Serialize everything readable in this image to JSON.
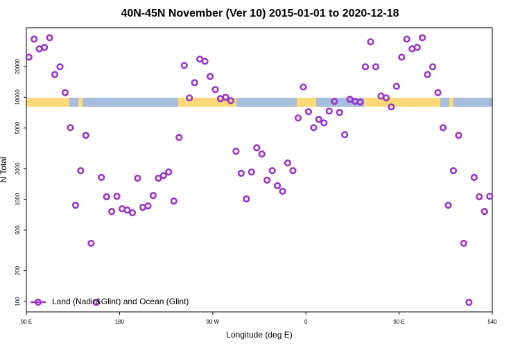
{
  "chart_data": {
    "type": "scatter",
    "title": "40N-45N November (Ver 10)   2015-01-01 to 2020-12-18",
    "xlabel": "Longitude (deg E)",
    "ylabel": "N Total",
    "xlim": [
      90,
      540
    ],
    "ylim": [
      79,
      48000
    ],
    "log_y": true,
    "legend": "bottom-left",
    "xticks": [
      {
        "value": 90,
        "label": "90 E"
      },
      180,
      {
        "value": 270,
        "label": "90 W"
      },
      {
        "value": 360,
        "label": "0"
      },
      {
        "value": 450,
        "label": "90 E"
      },
      540
    ],
    "yticks": [
      100,
      200,
      500,
      1000,
      2000,
      5000,
      10000,
      20000
    ],
    "x": [
      92.5,
      97.5,
      102.5,
      107.5,
      112.5,
      117.5,
      122.5,
      127.5,
      132.5,
      137.5,
      142.5,
      147.5,
      152.5,
      157.5,
      162.5,
      167.5,
      172.5,
      177.5,
      182.5,
      187.5,
      192.5,
      197.5,
      202.5,
      207.5,
      212.5,
      217.5,
      222.5,
      227.5,
      232.5,
      237.5,
      242.5,
      247.5,
      252.5,
      257.5,
      262.5,
      267.5,
      272.5,
      277.5,
      282.5,
      287.5,
      292.5,
      297.5,
      302.5,
      307.5,
      312.5,
      317.5,
      322.5,
      327.5,
      332.5,
      337.5,
      342.5,
      347.5,
      352.5,
      357.5,
      362.5,
      367.5,
      372.5,
      377.5,
      382.5,
      387.5,
      392.5,
      397.5,
      402.5,
      407.5,
      412.5,
      417.5,
      422.5,
      427.5,
      432.5,
      437.5,
      442.5,
      447.5,
      452.5,
      457.5,
      462.5,
      467.5,
      472.5,
      477.5,
      482.5,
      487.5,
      492.5,
      497.5,
      502.5,
      507.5,
      512.5,
      517.5,
      522.5,
      527.5,
      532.5,
      537.5
    ],
    "series": [
      {
        "name": "Land (Nadir&Glint) and Ocean (Glint)",
        "color": "#9a32cd",
        "values": [
          24700,
          37100,
          29800,
          30800,
          38300,
          16700,
          19900,
          11100,
          5030,
          876,
          1910,
          4240,
          371,
          98,
          1640,
          1060,
          761,
          1070,
          809,
          785,
          738,
          1610,
          836,
          862,
          1090,
          1610,
          1710,
          1850,
          962,
          4040,
          20500,
          9850,
          13900,
          23600,
          22500,
          16000,
          11900,
          9690,
          10000,
          9250,
          2960,
          1800,
          1010,
          1850,
          3200,
          2780,
          1540,
          1910,
          1360,
          1200,
          2270,
          1910,
          6260,
          12600,
          7210,
          5030,
          6070,
          5610,
          7320,
          9110,
          7100,
          4300,
          9550,
          9110,
          8970,
          19900,
          34900,
          19900,
          10300,
          9850,
          8040,
          12800,
          24700,
          37100,
          29800,
          30800,
          38300,
          16700,
          19900,
          11100,
          5030,
          876,
          1910,
          4240,
          371,
          98,
          1640,
          1060,
          761,
          1070
        ]
      }
    ]
  }
}
